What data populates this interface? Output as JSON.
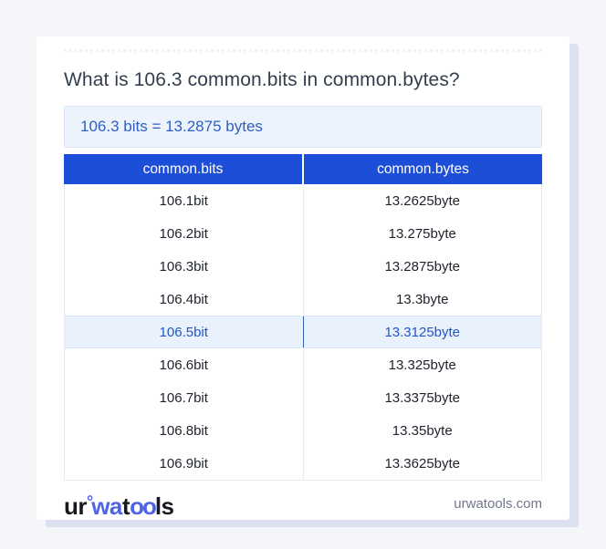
{
  "title": "What is 106.3 common.bits in common.bytes?",
  "result_text": "106.3 bits = 13.2875 bytes",
  "table": {
    "headers": [
      "common.bits",
      "common.bytes"
    ],
    "rows": [
      {
        "bits": "106.1bit",
        "bytes": "13.2625byte",
        "highlighted": false
      },
      {
        "bits": "106.2bit",
        "bytes": "13.275byte",
        "highlighted": false
      },
      {
        "bits": "106.3bit",
        "bytes": "13.2875byte",
        "highlighted": false
      },
      {
        "bits": "106.4bit",
        "bytes": "13.3byte",
        "highlighted": false
      },
      {
        "bits": "106.5bit",
        "bytes": "13.3125byte",
        "highlighted": true
      },
      {
        "bits": "106.6bit",
        "bytes": "13.325byte",
        "highlighted": false
      },
      {
        "bits": "106.7bit",
        "bytes": "13.3375byte",
        "highlighted": false
      },
      {
        "bits": "106.8bit",
        "bytes": "13.35byte",
        "highlighted": false
      },
      {
        "bits": "106.9bit",
        "bytes": "13.3625byte",
        "highlighted": false
      }
    ]
  },
  "footer": {
    "logo_segments": {
      "s1": "ur",
      "ring": "°",
      "s2": "wa",
      "s3": "t",
      "s4": "oo",
      "s5": "ls"
    },
    "site_domain": "urwatools.com"
  },
  "colors": {
    "header_bg": "#1d4ed8",
    "result_bg": "#ecf3fc",
    "result_text": "#2e5fc0",
    "highlight_bg": "#e9f1fc",
    "highlight_text": "#2356c6",
    "logo_blue": "#4f63e9",
    "logo_dark": "#17191f",
    "page_bg": "#f4f6fa",
    "card_shadow": "#dbe1ee"
  }
}
